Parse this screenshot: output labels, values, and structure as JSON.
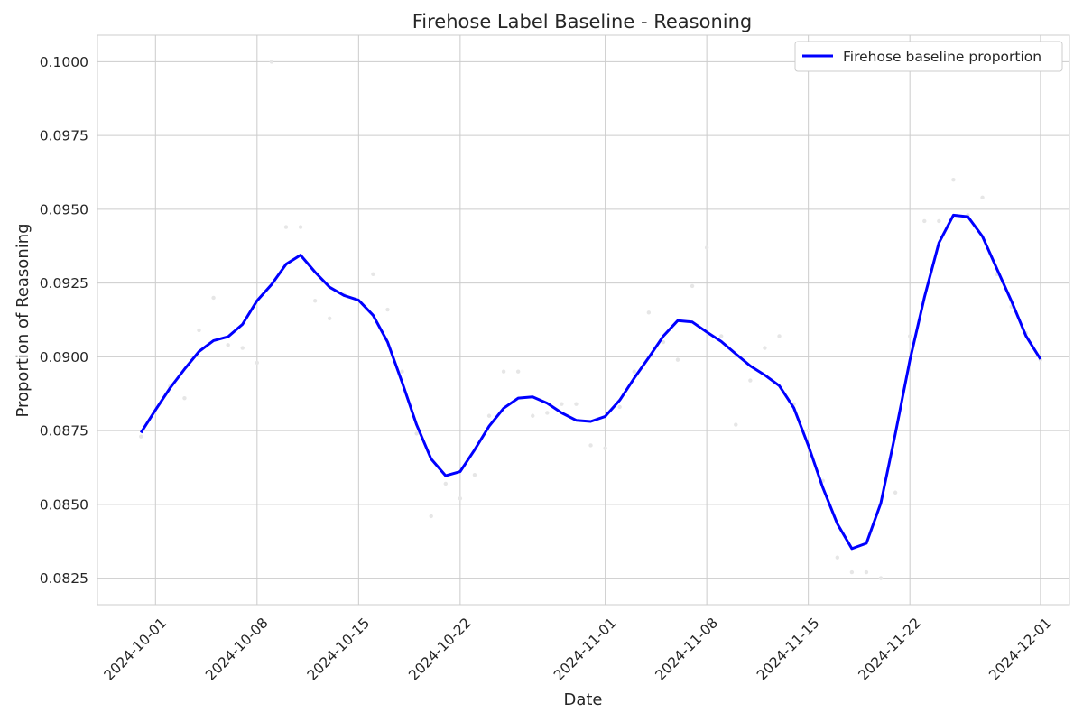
{
  "chart_data": {
    "type": "line",
    "title": "Firehose Label Baseline - Reasoning",
    "xlabel": "Date",
    "ylabel": "Proportion of Reasoning",
    "xlim": [
      "2024-09-27",
      "2024-12-03"
    ],
    "ylim": [
      0.0816,
      0.1009
    ],
    "x_ticks": [
      "2024-10-01",
      "2024-10-08",
      "2024-10-15",
      "2024-10-22",
      "2024-11-01",
      "2024-11-08",
      "2024-11-15",
      "2024-11-22",
      "2024-12-01"
    ],
    "y_ticks": [
      0.0825,
      0.085,
      0.0875,
      0.09,
      0.0925,
      0.095,
      0.0975,
      0.1
    ],
    "y_tick_labels": [
      "0.0825",
      "0.0850",
      "0.0875",
      "0.0900",
      "0.0925",
      "0.0950",
      "0.0975",
      "0.1000"
    ],
    "grid": true,
    "legend": {
      "position": "top-right",
      "entries": [
        "Firehose baseline proportion"
      ]
    },
    "series": [
      {
        "name": "Firehose baseline proportion",
        "color": "#0000ff",
        "x": [
          "2024-09-30",
          "2024-10-01",
          "2024-10-02",
          "2024-10-03",
          "2024-10-04",
          "2024-10-05",
          "2024-10-06",
          "2024-10-07",
          "2024-10-08",
          "2024-10-09",
          "2024-10-10",
          "2024-10-11",
          "2024-10-12",
          "2024-10-13",
          "2024-10-14",
          "2024-10-15",
          "2024-10-16",
          "2024-10-17",
          "2024-10-18",
          "2024-10-19",
          "2024-10-20",
          "2024-10-21",
          "2024-10-22",
          "2024-10-23",
          "2024-10-24",
          "2024-10-25",
          "2024-10-26",
          "2024-10-27",
          "2024-10-28",
          "2024-10-29",
          "2024-10-30",
          "2024-10-31",
          "2024-11-01",
          "2024-11-02",
          "2024-11-03",
          "2024-11-04",
          "2024-11-05",
          "2024-11-06",
          "2024-11-07",
          "2024-11-08",
          "2024-11-09",
          "2024-11-10",
          "2024-11-11",
          "2024-11-12",
          "2024-11-13",
          "2024-11-14",
          "2024-11-15",
          "2024-11-16",
          "2024-11-17",
          "2024-11-18",
          "2024-11-19",
          "2024-11-20",
          "2024-11-21",
          "2024-11-22",
          "2024-11-23",
          "2024-11-24",
          "2024-11-25",
          "2024-11-26",
          "2024-11-27",
          "2024-11-28",
          "2024-11-29",
          "2024-11-30",
          "2024-12-01"
        ],
        "values": [
          0.08743,
          0.0882,
          0.08894,
          0.08958,
          0.09018,
          0.09055,
          0.09068,
          0.0911,
          0.0919,
          0.09245,
          0.09314,
          0.09345,
          0.09287,
          0.09236,
          0.09208,
          0.09192,
          0.09141,
          0.0905,
          0.08913,
          0.0877,
          0.08654,
          0.08597,
          0.08611,
          0.08685,
          0.08765,
          0.08826,
          0.0886,
          0.08864,
          0.08843,
          0.0881,
          0.08785,
          0.08781,
          0.08798,
          0.08853,
          0.08928,
          0.08997,
          0.0907,
          0.09123,
          0.09118,
          0.09084,
          0.09052,
          0.0901,
          0.08969,
          0.08938,
          0.08902,
          0.08827,
          0.08699,
          0.08557,
          0.08434,
          0.0835,
          0.08368,
          0.08504,
          0.0874,
          0.08989,
          0.09202,
          0.09386,
          0.0948,
          0.09475,
          0.09408,
          0.09298,
          0.09189,
          0.09071,
          0.08992
        ]
      }
    ],
    "scatter_points": [
      {
        "x": "2024-09-30",
        "y": 0.0873
      },
      {
        "x": "2024-10-02",
        "y": 0.089
      },
      {
        "x": "2024-10-03",
        "y": 0.0886
      },
      {
        "x": "2024-10-04",
        "y": 0.0909
      },
      {
        "x": "2024-10-05",
        "y": 0.092
      },
      {
        "x": "2024-10-06",
        "y": 0.0904
      },
      {
        "x": "2024-10-07",
        "y": 0.0903
      },
      {
        "x": "2024-10-08",
        "y": 0.0898
      },
      {
        "x": "2024-10-09",
        "y": 0.1
      },
      {
        "x": "2024-10-10",
        "y": 0.0944
      },
      {
        "x": "2024-10-11",
        "y": 0.0944
      },
      {
        "x": "2024-10-12",
        "y": 0.0919
      },
      {
        "x": "2024-10-13",
        "y": 0.0913
      },
      {
        "x": "2024-10-14",
        "y": 0.0921
      },
      {
        "x": "2024-10-16",
        "y": 0.0928
      },
      {
        "x": "2024-10-17",
        "y": 0.0916
      },
      {
        "x": "2024-10-18",
        "y": 0.0895
      },
      {
        "x": "2024-10-19",
        "y": 0.0874
      },
      {
        "x": "2024-10-20",
        "y": 0.0846
      },
      {
        "x": "2024-10-21",
        "y": 0.0857
      },
      {
        "x": "2024-10-22",
        "y": 0.0852
      },
      {
        "x": "2024-10-23",
        "y": 0.086
      },
      {
        "x": "2024-10-24",
        "y": 0.088
      },
      {
        "x": "2024-10-25",
        "y": 0.0895
      },
      {
        "x": "2024-10-26",
        "y": 0.0895
      },
      {
        "x": "2024-10-27",
        "y": 0.088
      },
      {
        "x": "2024-10-28",
        "y": 0.0881
      },
      {
        "x": "2024-10-29",
        "y": 0.0884
      },
      {
        "x": "2024-10-30",
        "y": 0.0884
      },
      {
        "x": "2024-10-31",
        "y": 0.087
      },
      {
        "x": "2024-11-01",
        "y": 0.0869
      },
      {
        "x": "2024-11-02",
        "y": 0.0883
      },
      {
        "x": "2024-11-03",
        "y": 0.0895
      },
      {
        "x": "2024-11-04",
        "y": 0.0915
      },
      {
        "x": "2024-11-05",
        "y": 0.0905
      },
      {
        "x": "2024-11-06",
        "y": 0.0899
      },
      {
        "x": "2024-11-07",
        "y": 0.0924
      },
      {
        "x": "2024-11-08",
        "y": 0.0937
      },
      {
        "x": "2024-11-09",
        "y": 0.0907
      },
      {
        "x": "2024-11-10",
        "y": 0.0877
      },
      {
        "x": "2024-11-11",
        "y": 0.0892
      },
      {
        "x": "2024-11-12",
        "y": 0.0903
      },
      {
        "x": "2024-11-13",
        "y": 0.0907
      },
      {
        "x": "2024-11-14",
        "y": 0.0884
      },
      {
        "x": "2024-11-15",
        "y": 0.0875
      },
      {
        "x": "2024-11-16",
        "y": 0.0858
      },
      {
        "x": "2024-11-17",
        "y": 0.0832
      },
      {
        "x": "2024-11-18",
        "y": 0.0827
      },
      {
        "x": "2024-11-19",
        "y": 0.0827
      },
      {
        "x": "2024-11-20",
        "y": 0.0825
      },
      {
        "x": "2024-11-21",
        "y": 0.0854
      },
      {
        "x": "2024-11-22",
        "y": 0.0907
      },
      {
        "x": "2024-11-23",
        "y": 0.0946
      },
      {
        "x": "2024-11-24",
        "y": 0.0946
      },
      {
        "x": "2024-11-25",
        "y": 0.096
      },
      {
        "x": "2024-11-26",
        "y": 0.0948
      },
      {
        "x": "2024-11-27",
        "y": 0.0954
      },
      {
        "x": "2024-11-28",
        "y": 0.0928
      },
      {
        "x": "2024-11-29",
        "y": 0.0917
      },
      {
        "x": "2024-11-30",
        "y": 0.0908
      },
      {
        "x": "2024-12-01",
        "y": 0.0899
      }
    ],
    "colors": {
      "line": "#0000ff",
      "grid": "#cccccc",
      "frame": "#cccccc",
      "points": "#e6e6e6"
    }
  }
}
